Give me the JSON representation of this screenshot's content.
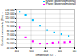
{
  "chart_data": {
    "type": "scatter",
    "xlabel": "Temperature (K)",
    "ylabel": "Electrical conductivity (S/m)",
    "xlim": [
      200,
      600
    ],
    "ylim": [
      40000,
      130000
    ],
    "xticks": [
      200,
      300,
      400,
      500,
      600
    ],
    "yticks": [
      {
        "value": 40000,
        "label": "40 000"
      },
      {
        "value": 50000,
        "label": "50 000"
      },
      {
        "value": 60000,
        "label": "60 000"
      },
      {
        "value": 70000,
        "label": "70 000"
      },
      {
        "value": 80000,
        "label": "80 000"
      },
      {
        "value": 90000,
        "label": "90 000"
      },
      {
        "value": 100000,
        "label": "100 000"
      },
      {
        "value": 110000,
        "label": "110 000"
      },
      {
        "value": 120000,
        "label": "120 000"
      },
      {
        "value": 130000,
        "label": "130 000"
      }
    ],
    "series": [
      {
        "name": "N-type (dispersed material)",
        "color": "#00bfff",
        "marker": "square",
        "x": [
          220,
          260,
          310,
          360,
          410,
          460,
          510,
          560
        ],
        "values": [
          125000,
          118000,
          105000,
          92000,
          82000,
          76000,
          72000,
          68000
        ]
      },
      {
        "name": "P-type (dispersed material)",
        "color": "#ff00ff",
        "marker": "square",
        "x": [
          220,
          260,
          310,
          360,
          410,
          450,
          490,
          530,
          570
        ],
        "values": [
          88000,
          65000,
          55000,
          50000,
          50000,
          52000,
          53000,
          53000,
          54000
        ]
      }
    ],
    "grid": true,
    "legend": "upper right"
  }
}
